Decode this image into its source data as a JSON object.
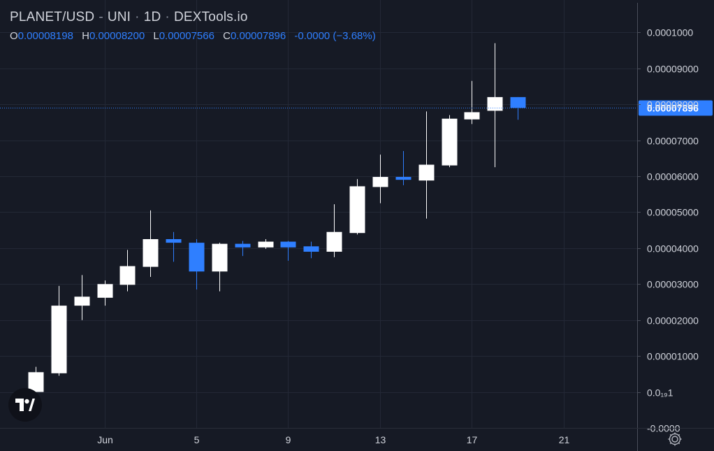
{
  "header": {
    "pair": "PLANET/USD",
    "exchange": "UNI",
    "interval": "1D",
    "source": "DEXTools.io"
  },
  "ohlc": {
    "o_label": "O",
    "o_value": "0.00008198",
    "h_label": "H",
    "h_value": "0.00008200",
    "l_label": "L",
    "l_value": "0.00007566",
    "c_label": "C",
    "c_value": "0.00007896",
    "change": "-0.0000 (−3.68%)"
  },
  "colors": {
    "background": "#161a25",
    "grid": "#232836",
    "up": "#ffffff",
    "down": "#2f7fff",
    "text": "#d1d4dc",
    "price_tag": "#2f7fff"
  },
  "chart_data": {
    "type": "candlestick",
    "x_ticks": [
      {
        "label": "Jun",
        "day": 1
      },
      {
        "label": "5",
        "day": 5
      },
      {
        "label": "9",
        "day": 9
      },
      {
        "label": "13",
        "day": 13
      },
      {
        "label": "17",
        "day": 17
      },
      {
        "label": "21",
        "day": 21
      }
    ],
    "y_ticks": [
      {
        "value": 0.0001,
        "label": "0.0001000"
      },
      {
        "value": 9e-05,
        "label": "0.00009000"
      },
      {
        "value": 8e-05,
        "label": "0.00008000"
      },
      {
        "value": 7e-05,
        "label": "0.00007000"
      },
      {
        "value": 6e-05,
        "label": "0.00006000"
      },
      {
        "value": 5e-05,
        "label": "0.00005000"
      },
      {
        "value": 4e-05,
        "label": "0.00004000"
      },
      {
        "value": 3e-05,
        "label": "0.00003000"
      },
      {
        "value": 2e-05,
        "label": "0.00002000"
      },
      {
        "value": 1e-05,
        "label": "0.00001000"
      },
      {
        "value": 0,
        "label": "0.0₁₉1"
      },
      {
        "value": -1e-05,
        "label": "-0.0000"
      }
    ],
    "ylim": [
      -1e-05,
      0.000109
    ],
    "xlim": [
      -3.55,
      24.2
    ],
    "last_price": 7.896e-05,
    "last_price_label": "0.00007896",
    "candles": [
      {
        "day": -2,
        "o": 0.0,
        "h": 7e-06,
        "l": 0.0,
        "c": 5.5e-06
      },
      {
        "day": -1,
        "o": 5.2e-06,
        "h": 2.95e-05,
        "l": 4.5e-06,
        "c": 2.4e-05
      },
      {
        "day": 0,
        "o": 2.4e-05,
        "h": 3.25e-05,
        "l": 2e-05,
        "c": 2.65e-05
      },
      {
        "day": 1,
        "o": 2.62e-05,
        "h": 3.1e-05,
        "l": 2.4e-05,
        "c": 3e-05
      },
      {
        "day": 2,
        "o": 2.98e-05,
        "h": 3.95e-05,
        "l": 2.8e-05,
        "c": 3.5e-05
      },
      {
        "day": 3,
        "o": 3.48e-05,
        "h": 5.05e-05,
        "l": 3.2e-05,
        "c": 4.25e-05
      },
      {
        "day": 4,
        "o": 4.25e-05,
        "h": 4.45e-05,
        "l": 3.62e-05,
        "c": 4.15e-05
      },
      {
        "day": 5,
        "o": 4.15e-05,
        "h": 4.25e-05,
        "l": 2.85e-05,
        "c": 3.35e-05
      },
      {
        "day": 6,
        "o": 3.35e-05,
        "h": 4.15e-05,
        "l": 2.8e-05,
        "c": 4.12e-05
      },
      {
        "day": 7,
        "o": 4.12e-05,
        "h": 4.2e-05,
        "l": 3.78e-05,
        "c": 4.02e-05
      },
      {
        "day": 8,
        "o": 4.02e-05,
        "h": 4.25e-05,
        "l": 3.98e-05,
        "c": 4.18e-05
      },
      {
        "day": 9,
        "o": 4.18e-05,
        "h": 4.2e-05,
        "l": 3.65e-05,
        "c": 4.02e-05
      },
      {
        "day": 10,
        "o": 4.05e-05,
        "h": 4.18e-05,
        "l": 3.72e-05,
        "c": 3.9e-05
      },
      {
        "day": 11,
        "o": 3.9e-05,
        "h": 5.22e-05,
        "l": 3.75e-05,
        "c": 4.45e-05
      },
      {
        "day": 12,
        "o": 4.42e-05,
        "h": 5.92e-05,
        "l": 4.38e-05,
        "c": 5.72e-05
      },
      {
        "day": 13,
        "o": 5.7e-05,
        "h": 6.6e-05,
        "l": 5.25e-05,
        "c": 5.98e-05
      },
      {
        "day": 14,
        "o": 5.98e-05,
        "h": 6.7e-05,
        "l": 5.75e-05,
        "c": 5.9e-05
      },
      {
        "day": 15,
        "o": 5.88e-05,
        "h": 7.8e-05,
        "l": 4.82e-05,
        "c": 6.32e-05
      },
      {
        "day": 16,
        "o": 6.3e-05,
        "h": 7.7e-05,
        "l": 6.25e-05,
        "c": 7.6e-05
      },
      {
        "day": 17,
        "o": 7.58e-05,
        "h": 8.65e-05,
        "l": 7.45e-05,
        "c": 7.78e-05
      },
      {
        "day": 18,
        "o": 7.82e-05,
        "h": 9.7e-05,
        "l": 6.25e-05,
        "c": 8.2e-05
      },
      {
        "day": 19,
        "o": 8.2e-05,
        "h": 8.2e-05,
        "l": 7.57e-05,
        "c": 7.9e-05
      }
    ]
  }
}
